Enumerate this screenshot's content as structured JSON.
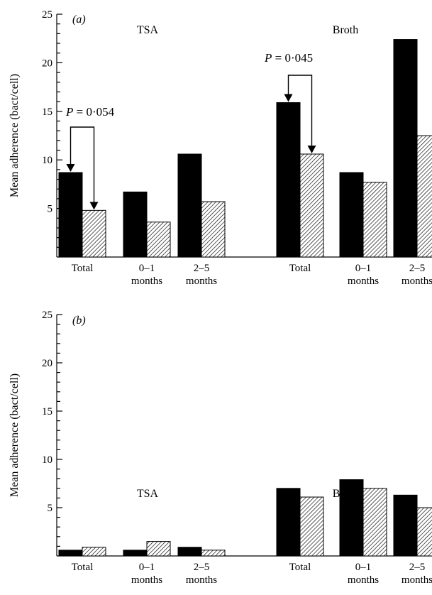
{
  "chart_data": [
    {
      "type": "bar",
      "panel_label": "(a)",
      "ylabel": "Mean adherence (bact/cell)",
      "ylim": [
        0,
        25
      ],
      "yticks": [
        "5",
        "10",
        "15",
        "20",
        "25"
      ],
      "groups": [
        {
          "name": "TSA",
          "categories": [
            [
              "Total"
            ],
            [
              "0–1",
              "months"
            ],
            [
              "2–5",
              "months"
            ]
          ],
          "series": [
            {
              "style": "solid",
              "values": [
                8.7,
                6.7,
                10.6
              ]
            },
            {
              "style": "hatched",
              "values": [
                4.8,
                3.6,
                5.7
              ]
            }
          ],
          "annotation": {
            "text_prefix": "P",
            "text_value": " = 0·054",
            "category_index": 0
          }
        },
        {
          "name": "Broth",
          "categories": [
            [
              "Total"
            ],
            [
              "0–1",
              "months"
            ],
            [
              "2–5",
              "months"
            ]
          ],
          "series": [
            {
              "style": "solid",
              "values": [
                15.9,
                8.7,
                22.4
              ]
            },
            {
              "style": "hatched",
              "values": [
                10.6,
                7.7,
                12.5
              ]
            }
          ],
          "annotation": {
            "text_prefix": "P",
            "text_value": " = 0·045",
            "category_index": 0
          }
        }
      ]
    },
    {
      "type": "bar",
      "panel_label": "(b)",
      "ylabel": "Mean adherence (bact/cell)",
      "ylim": [
        0,
        25
      ],
      "yticks": [
        "5",
        "10",
        "15",
        "20",
        "25"
      ],
      "groups": [
        {
          "name": "TSA",
          "categories": [
            [
              "Total"
            ],
            [
              "0–1",
              "months"
            ],
            [
              "2–5",
              "months"
            ]
          ],
          "series": [
            {
              "style": "solid",
              "values": [
                0.6,
                0.6,
                0.9
              ]
            },
            {
              "style": "hatched",
              "values": [
                0.9,
                1.5,
                0.6
              ]
            }
          ]
        },
        {
          "name": "Broth",
          "categories": [
            [
              "Total"
            ],
            [
              "0–1",
              "months"
            ],
            [
              "2–5",
              "months"
            ]
          ],
          "series": [
            {
              "style": "solid",
              "values": [
                7.0,
                7.9,
                6.3
              ]
            },
            {
              "style": "hatched",
              "values": [
                6.1,
                7.0,
                5.0
              ]
            }
          ]
        }
      ]
    }
  ]
}
